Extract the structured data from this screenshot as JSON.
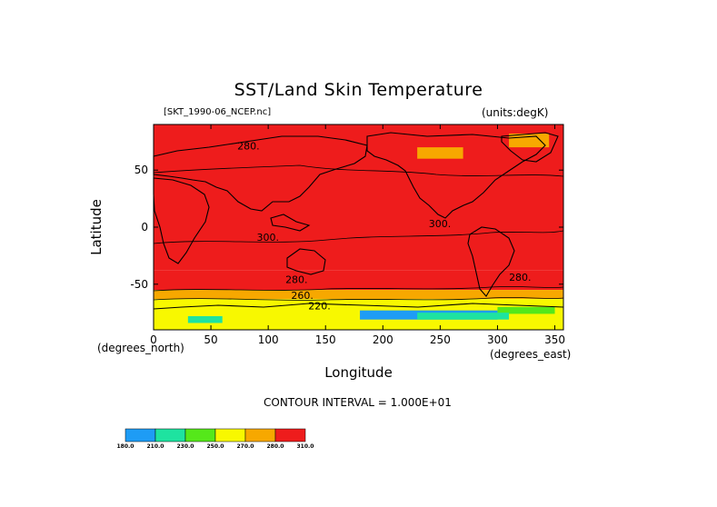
{
  "chart_data": {
    "type": "heatmap",
    "title": "SST/Land Skin Temperature",
    "file_label": "[SKT_1990-06_NCEP.nc]",
    "units_label": "(units:degK)",
    "xlabel": "Longitude",
    "ylabel": "Latitude",
    "x_unit": "(degrees_east)",
    "y_unit": "(degrees_north)",
    "xlim": [
      0,
      357.5
    ],
    "ylim": [
      -90,
      90
    ],
    "xticks": [
      0,
      50,
      100,
      150,
      200,
      250,
      300,
      350
    ],
    "yticks": [
      -50,
      0,
      50
    ],
    "contour_interval_text": "CONTOUR INTERVAL = 1.000E+01",
    "contour_labels": [
      {
        "text": "280.",
        "x": 73,
        "y": 68
      },
      {
        "text": "300.",
        "x": 240,
        "y": 0
      },
      {
        "text": "300.",
        "x": 90,
        "y": -12
      },
      {
        "text": "280.",
        "x": 115,
        "y": -49
      },
      {
        "text": "260.",
        "x": 120,
        "y": -63
      },
      {
        "text": "220.",
        "x": 135,
        "y": -72
      },
      {
        "text": "280.",
        "x": 310,
        "y": -47
      }
    ],
    "bands": [
      {
        "from_lat": 90,
        "to_lat": 45,
        "value": 280
      },
      {
        "from_lat": 45,
        "to_lat": -38,
        "value": 300
      },
      {
        "from_lat": -38,
        "to_lat": -55,
        "value": 280
      },
      {
        "from_lat": -55,
        "to_lat": -63,
        "value": 270
      },
      {
        "from_lat": -63,
        "to_lat": -90,
        "value": 250
      }
    ],
    "colorbar": {
      "levels": [
        "180.0",
        "210.0",
        "230.0",
        "250.0",
        "270.0",
        "280.0",
        "310.0"
      ],
      "colors": [
        "#1e9cf5",
        "#1ee3a0",
        "#55e81a",
        "#f8f800",
        "#f7a800",
        "#ee1c1c"
      ]
    }
  }
}
